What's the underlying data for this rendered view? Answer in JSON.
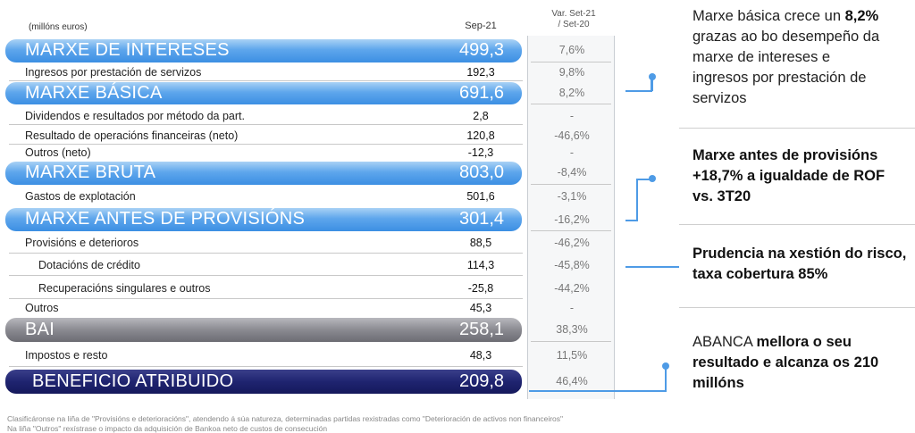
{
  "header": {
    "units": "(millóns euros)",
    "period": "Sep-21",
    "variation": [
      "Var. Set-21",
      "/ Set-20"
    ]
  },
  "rows": [
    {
      "label": "MARXE DE INTERESES",
      "value": "499,3",
      "var": "7,6%"
    },
    {
      "label": "Ingresos por prestación de servizos",
      "value": "192,3",
      "var": "9,8%"
    },
    {
      "label": "MARXE BÁSICA",
      "value": "691,6",
      "var": "8,2%"
    },
    {
      "label": "Dividendos e resultados por método da part.",
      "value": "2,8",
      "var": "-"
    },
    {
      "label": "Resultado de operacións financeiras (neto)",
      "value": "120,8",
      "var": "-46,6%"
    },
    {
      "label": "Outros (neto)",
      "value": "-12,3",
      "var": "-"
    },
    {
      "label": "MARXE BRUTA",
      "value": "803,0",
      "var": "-8,4%"
    },
    {
      "label": "Gastos de explotación",
      "value": "501,6",
      "var": "-3,1%"
    },
    {
      "label": "MARXE ANTES DE PROVISIÓNS",
      "value": "301,4",
      "var": "-16,2%"
    },
    {
      "label": "Provisións e deterioros",
      "value": "88,5",
      "var": "-46,2%"
    },
    {
      "label": "Dotacións de crédito",
      "value": "114,3",
      "var": "-45,8%"
    },
    {
      "label": "Recuperacións singulares e outros",
      "value": "-25,8",
      "var": "-44,2%"
    },
    {
      "label": "Outros",
      "value": "45,3",
      "var": "-"
    },
    {
      "label": "BAI",
      "value": "258,1",
      "var": "38,3%"
    },
    {
      "label": "Impostos e resto",
      "value": "48,3",
      "var": "11,5%"
    },
    {
      "label": "BENEFICIO ATRIBUIDO",
      "value": "209,8",
      "var": "46,4%"
    }
  ],
  "comments": [
    {
      "pre": "Marxe básica crece un ",
      "bold": "8,2%",
      "post": " grazas ao bo desempeño da marxe de intereses e ingresos por prestación de servizos"
    },
    {
      "pre": "",
      "bold": "Marxe antes de provisións +18,7% a igualdade de ROF vs. 3T20",
      "post": ""
    },
    {
      "pre": "",
      "bold": "Prudencia na xestión do risco, taxa cobertura 85%",
      "post": ""
    },
    {
      "pre": "ABANCA ",
      "bold": "mellora o seu resultado e alcanza os 210 millóns",
      "post": ""
    }
  ],
  "footnotes": [
    "Clasificáronse na liña de \"Provisións e deterioracións\", atendendo á súa natureza, determinadas partidas rexistradas como \"Deterioración de activos non financeiros\"",
    "Na liña \"Outros\" rexístrase o impacto da adquisición de Bankoa neto de custos de consecución"
  ],
  "colors": {
    "accent_blue": "#4e9be6",
    "band_grey": "#8a8a91",
    "band_navy": "#1f2470"
  }
}
